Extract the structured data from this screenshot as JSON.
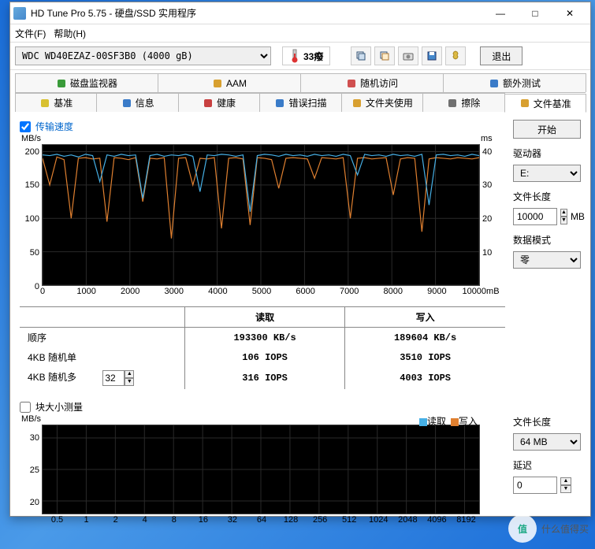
{
  "window": {
    "title": "HD Tune Pro 5.75 - 硬盘/SSD 实用程序",
    "minimize": "—",
    "maximize": "□",
    "close": "✕"
  },
  "menu": {
    "file": "文件(F)",
    "help": "帮助(H)"
  },
  "toolbar": {
    "drive": "WDC WD40EZAZ-00SF3B0 (4000 gB)",
    "temp": "33癈",
    "exit": "退出"
  },
  "tabs_row1": [
    {
      "label": "磁盘监视器",
      "color": "#3a9b3a"
    },
    {
      "label": "AAM",
      "color": "#d8a030"
    },
    {
      "label": "随机访问",
      "color": "#d05050"
    },
    {
      "label": "额外测试",
      "color": "#3a7bc8"
    }
  ],
  "tabs_row2": [
    {
      "label": "基准",
      "color": "#d8c030"
    },
    {
      "label": "信息",
      "color": "#3a7bc8"
    },
    {
      "label": "健康",
      "color": "#c84040"
    },
    {
      "label": "错误扫描",
      "color": "#3a7bc8"
    },
    {
      "label": "文件夹使用",
      "color": "#d8a030"
    },
    {
      "label": "擦除",
      "color": "#707070"
    },
    {
      "label": "文件基准",
      "color": "#d8a030",
      "active": true
    }
  ],
  "transfer": {
    "checkbox_label": "传输速度",
    "checked": true,
    "chart": {
      "bg": "#000000",
      "grid_color": "#2a2a2a",
      "y_label_l": "MB/s",
      "y_label_r": "ms",
      "y_ticks_l": [
        0,
        50,
        100,
        150,
        200
      ],
      "ylim_l": [
        0,
        210
      ],
      "y_ticks_r": [
        10,
        20,
        30,
        40
      ],
      "ylim_r": [
        0,
        42
      ],
      "x_ticks": [
        "0",
        "1000",
        "2000",
        "3000",
        "4000",
        "5000",
        "6000",
        "7000",
        "8000",
        "9000",
        "10000mB"
      ],
      "xlim": [
        0,
        10000
      ],
      "series": {
        "read": {
          "color": "#46b0e6",
          "values": [
            195,
            194,
            196,
            193,
            195,
            192,
            196,
            194,
            155,
            195,
            193,
            196,
            194,
            195,
            130,
            194,
            196,
            193,
            195,
            194,
            196,
            193,
            140,
            195,
            194,
            196,
            195,
            193,
            195,
            110,
            194,
            196,
            195,
            193,
            196,
            194,
            195,
            193,
            196,
            194,
            195,
            193,
            196,
            194,
            165,
            196,
            194,
            195,
            193,
            196,
            194,
            195,
            193,
            196,
            120,
            195,
            196,
            194,
            195,
            193,
            196,
            194
          ]
        },
        "write": {
          "color": "#e08030",
          "values": [
            190,
            150,
            192,
            188,
            100,
            190,
            191,
            189,
            190,
            95,
            191,
            190,
            188,
            191,
            125,
            190,
            189,
            191,
            70,
            190,
            191,
            150,
            190,
            189,
            191,
            85,
            190,
            191,
            189,
            90,
            191,
            190,
            188,
            145,
            190,
            191,
            190,
            189,
            160,
            191,
            190,
            189,
            191,
            100,
            190,
            191,
            189,
            190,
            191,
            135,
            189,
            191,
            190,
            80,
            189,
            191,
            190,
            189,
            191,
            190,
            189,
            191
          ]
        }
      }
    }
  },
  "results": {
    "col_read": "读取",
    "col_write": "写入",
    "rows": [
      {
        "label": "顺序",
        "read": "193300 KB/s",
        "write": "189604 KB/s"
      },
      {
        "label": "4KB 随机单",
        "read": "106 IOPS",
        "write": "3510 IOPS"
      },
      {
        "label": "4KB 随机多",
        "extra_input": "32",
        "read": "316 IOPS",
        "write": "4003 IOPS"
      }
    ]
  },
  "blocksize": {
    "checkbox_label": "块大小测量",
    "checked": false,
    "chart": {
      "bg": "#000000",
      "grid_color": "#2a2a2a",
      "y_label": "MB/s",
      "y_ticks": [
        20,
        25,
        30
      ],
      "ylim": [
        18,
        32
      ],
      "x_ticks": [
        "0.5",
        "1",
        "2",
        "4",
        "8",
        "16",
        "32",
        "64",
        "128",
        "256",
        "512",
        "1024",
        "2048",
        "4096",
        "8192"
      ],
      "legend": [
        {
          "label": "读取",
          "color": "#46b0e6"
        },
        {
          "label": "写入",
          "color": "#e08030"
        }
      ]
    }
  },
  "side": {
    "start": "开始",
    "drive_label": "驱动器",
    "drive_value": "E:",
    "filelen_label": "文件长度",
    "filelen_value": "10000",
    "filelen_unit": "MB",
    "datapattern_label": "数据模式",
    "datapattern_value": "零",
    "filelen2_label": "文件长度",
    "filelen2_value": "64 MB",
    "delay_label": "延迟",
    "delay_value": "0"
  },
  "watermark": {
    "circ": "值",
    "text": "什么值得买"
  }
}
